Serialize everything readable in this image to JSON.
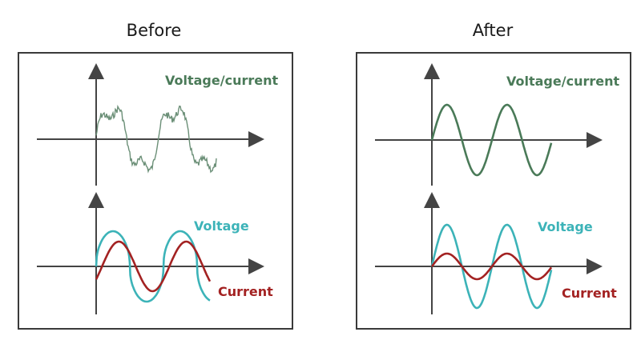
{
  "before": {
    "title": "Before",
    "top_label": "Voltage/current",
    "bottom_voltage_label": "Voltage",
    "bottom_current_label": "Current"
  },
  "after": {
    "title": "After",
    "top_label": "Voltage/current",
    "bottom_voltage_label": "Voltage",
    "bottom_current_label": "Current"
  },
  "colors": {
    "voltage_current": "#4a7a58",
    "voltage": "#3cb3b8",
    "current": "#a32222",
    "axis": "#444444"
  }
}
